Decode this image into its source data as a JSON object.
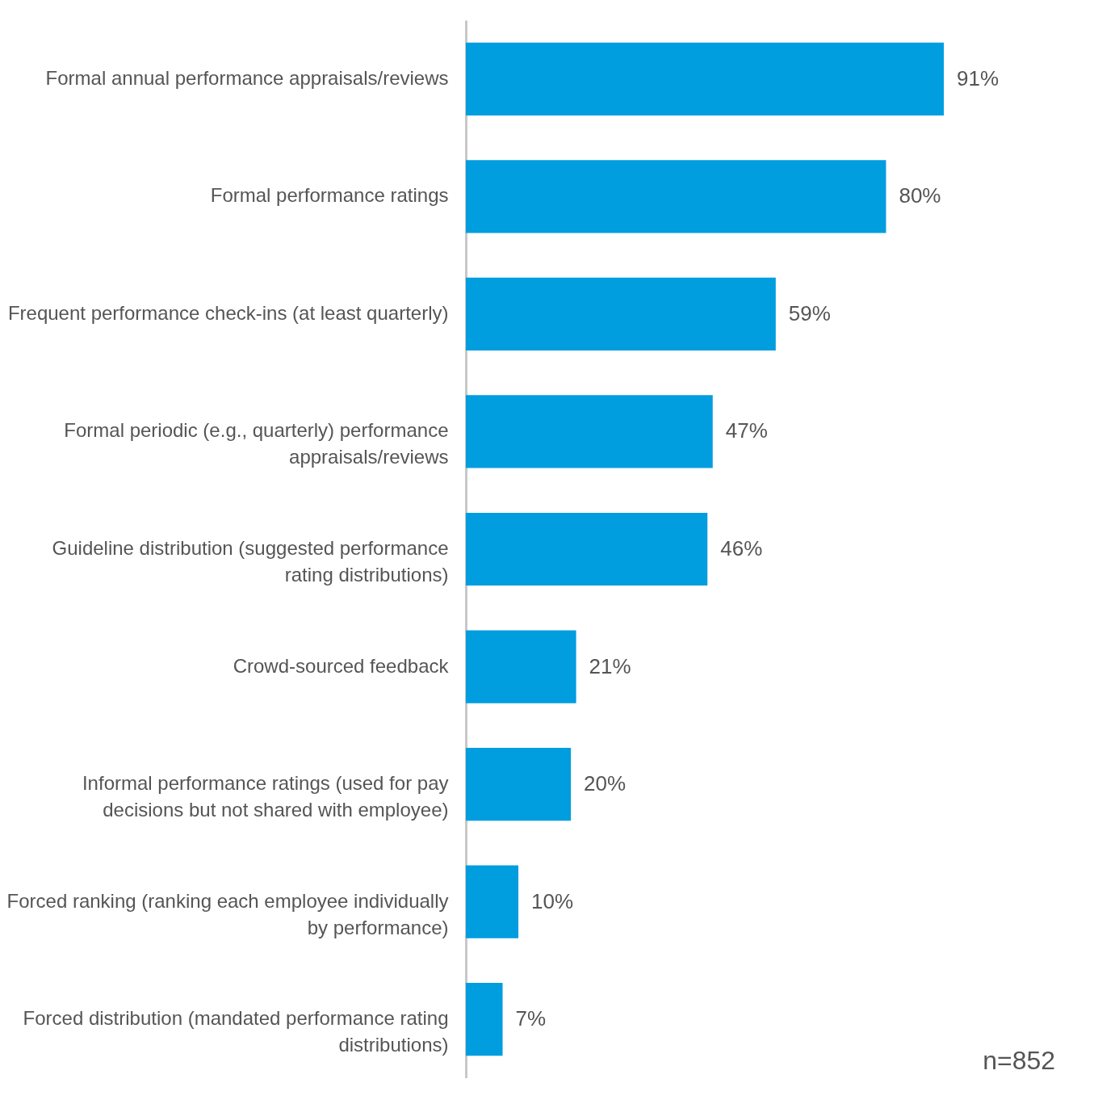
{
  "chart_data": {
    "type": "bar",
    "orientation": "horizontal",
    "color": "#009ddf",
    "categories": [
      "Formal annual performance appraisals/reviews",
      "Formal performance ratings",
      "Frequent performance check-ins (at least quarterly)",
      "Formal periodic (e.g., quarterly) performance appraisals/reviews",
      "Guideline distribution (suggested performance rating distributions)",
      "Crowd-sourced feedback",
      "Informal performance ratings (used for pay decisions but not shared with employee)",
      "Forced ranking (ranking each employee individually by performance)",
      "Forced distribution (mandated performance rating distributions)"
    ],
    "values": [
      91,
      80,
      59,
      47,
      46,
      21,
      20,
      10,
      7
    ],
    "value_labels": [
      "91%",
      "80%",
      "59%",
      "47%",
      "46%",
      "21%",
      "20%",
      "10%",
      "7%"
    ],
    "annotations": [
      "n=852"
    ]
  }
}
